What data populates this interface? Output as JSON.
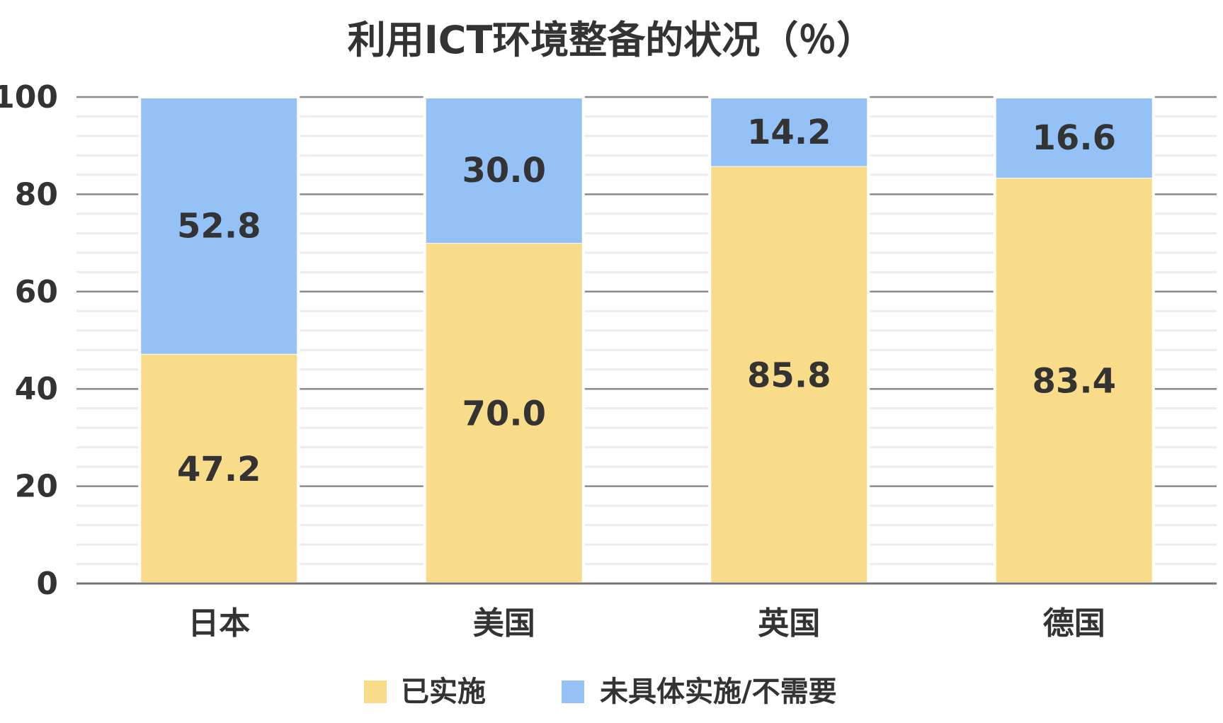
{
  "chart_data": {
    "type": "bar",
    "stacked": true,
    "title": "利用ICT环境整备的状况（％）",
    "xlabel": "",
    "ylabel": "",
    "categories": [
      "日本",
      "美国",
      "英国",
      "德国"
    ],
    "series": [
      {
        "name": "已实施",
        "values": [
          47.2,
          70.0,
          85.8,
          83.4
        ],
        "labels": [
          "47.2",
          "70.0",
          "85.8",
          "83.4"
        ],
        "color": "#f9dc8a"
      },
      {
        "name": "未具体实施/不需要",
        "values": [
          52.8,
          30.0,
          14.2,
          16.6
        ],
        "labels": [
          "52.8",
          "30.0",
          "14.2",
          "16.6"
        ],
        "color": "#94c1f6"
      }
    ],
    "ylim": [
      0,
      100
    ],
    "yticks": [
      "0",
      "20",
      "40",
      "60",
      "80",
      "100"
    ],
    "grid": true,
    "legend": "bottom"
  }
}
